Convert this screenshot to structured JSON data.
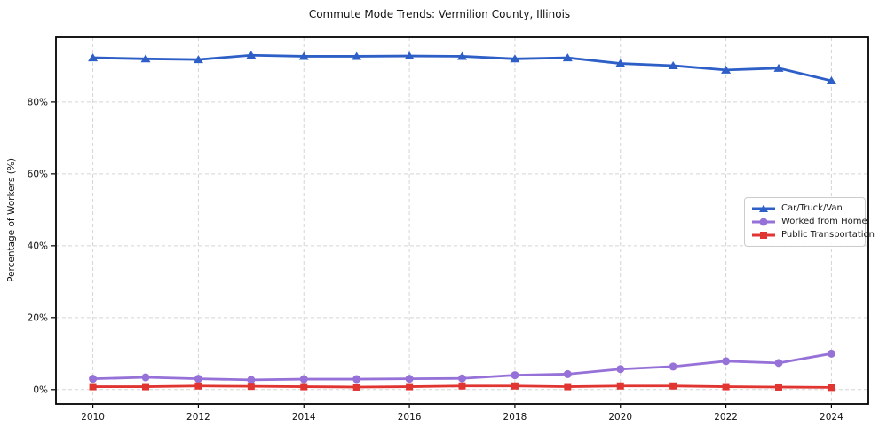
{
  "chart_data": {
    "type": "line",
    "title": "Commute Mode Trends: Vermilion County, Illinois",
    "xlabel": "",
    "ylabel": "Percentage of Workers (%)",
    "x": [
      2010,
      2011,
      2012,
      2013,
      2014,
      2015,
      2016,
      2017,
      2018,
      2019,
      2020,
      2021,
      2022,
      2023,
      2024
    ],
    "series": [
      {
        "name": "Car/Truck/Van",
        "marker": "triangle",
        "color": "#2d5fc7",
        "values": [
          92.3,
          92.0,
          91.8,
          93.0,
          92.7,
          92.7,
          92.8,
          92.7,
          92.0,
          92.3,
          90.7,
          90.1,
          88.9,
          89.4,
          85.9
        ]
      },
      {
        "name": "Worked from Home",
        "marker": "circle",
        "color": "#9571d8",
        "values": [
          3.0,
          3.4,
          3.0,
          2.7,
          2.9,
          2.9,
          3.0,
          3.1,
          4.0,
          4.3,
          5.7,
          6.4,
          7.9,
          7.4,
          10.0
        ]
      },
      {
        "name": "Public Transportation",
        "marker": "square",
        "color": "#e03531",
        "values": [
          0.8,
          0.8,
          1.0,
          0.9,
          0.8,
          0.7,
          0.8,
          1.0,
          1.0,
          0.8,
          1.0,
          1.0,
          0.8,
          0.7,
          0.6
        ]
      }
    ],
    "xlim": [
      2009.3,
      2024.7
    ],
    "ylim": [
      -4,
      98
    ],
    "xticks": [
      2010,
      2012,
      2014,
      2016,
      2018,
      2020,
      2022,
      2024
    ],
    "xtick_labels": [
      "2010",
      "2012",
      "2014",
      "2016",
      "2018",
      "2020",
      "2022",
      "2024"
    ],
    "yticks": [
      0,
      20,
      40,
      60,
      80
    ],
    "ytick_labels": [
      "0%",
      "20%",
      "40%",
      "60%",
      "80%"
    ],
    "grid": true,
    "grid_color": "#d5d5d5",
    "axis_color": "#000000",
    "background_color": "#ffffff",
    "legend_position": "right-middle"
  }
}
